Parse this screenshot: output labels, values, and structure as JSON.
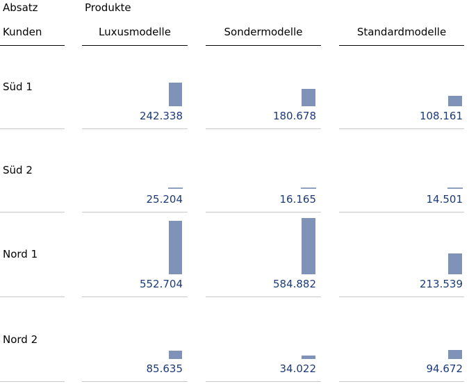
{
  "header": {
    "measure_label": "Absatz",
    "column_group_label": "Produkte",
    "row_group_label": "Kunden"
  },
  "colors": {
    "bar": "#7f93b9",
    "value_text": "#1a3a78",
    "thin_marker": "#8f9fbf",
    "header_rule": "#000000",
    "row_rule": "#c8c8c8"
  },
  "chart_data": {
    "type": "bar",
    "categories": [
      "Luxusmodelle",
      "Sondermodelle",
      "Standardmodelle"
    ],
    "rows": [
      "Süd 1",
      "Süd 2",
      "Nord 1",
      "Nord 2"
    ],
    "values": [
      [
        242338,
        180678,
        108161
      ],
      [
        25204,
        16165,
        14501
      ],
      [
        552704,
        584882,
        213539
      ],
      [
        85635,
        34022,
        94672
      ]
    ],
    "value_labels": [
      [
        "242.338",
        "180.678",
        "108.161"
      ],
      [
        "25.204",
        "16.165",
        "14.501"
      ],
      [
        "552.704",
        "584.882",
        "213.539"
      ],
      [
        "85.635",
        "34.022",
        "94.672"
      ]
    ],
    "ylim": [
      0,
      584882
    ],
    "grid": false
  }
}
